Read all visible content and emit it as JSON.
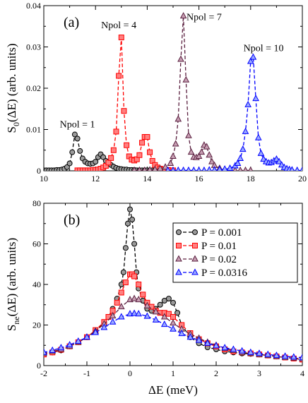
{
  "chart_data": [
    {
      "panel_label": "(a)",
      "type": "line",
      "ylabel_main": "S",
      "ylabel_sub": "0",
      "ylabel_rest": "(ΔE) (arb. units)",
      "xlim": [
        10,
        20
      ],
      "ylim": [
        0,
        0.04
      ],
      "xticks": [
        10,
        12,
        14,
        16,
        18,
        20
      ],
      "xtick_labels": [
        "10",
        "12",
        "14",
        "16",
        "18",
        "20"
      ],
      "yticks": [
        0,
        0.01,
        0.02,
        0.03,
        0.04
      ],
      "ytick_labels": [
        "0",
        "0.01",
        "0.02",
        "0.03",
        "0.04"
      ],
      "annotations": [
        {
          "text": "Npol = 1",
          "x": 11.3,
          "y": 0.0105
        },
        {
          "text": "Npol = 4",
          "x": 12.9,
          "y": 0.0345
        },
        {
          "text": "Npol = 7",
          "x": 16.2,
          "y": 0.0365
        },
        {
          "text": "Npol = 10",
          "x": 18.5,
          "y": 0.029
        }
      ],
      "series": [
        {
          "color": "#000000",
          "fill": "#9a9a9a",
          "marker": "circle",
          "x": [
            10.0,
            10.1,
            10.2,
            10.3,
            10.4,
            10.5,
            10.6,
            10.7,
            10.8,
            10.9,
            11.0,
            11.1,
            11.2,
            11.3,
            11.4,
            11.5,
            11.6,
            11.7,
            11.8,
            11.9,
            12.0,
            12.1,
            12.2,
            12.3,
            12.4,
            12.5,
            12.6,
            12.7,
            12.8,
            12.9,
            13.0,
            13.1,
            13.2,
            13.3,
            13.4,
            13.5,
            13.6,
            13.7,
            13.8,
            13.9,
            14.0,
            14.1,
            14.2,
            14.3,
            14.4,
            14.5,
            14.6,
            14.7,
            14.8,
            14.9,
            15.0
          ],
          "y": [
            0.0001,
            0.0001,
            0.0001,
            0.0001,
            0.0001,
            0.0002,
            0.0002,
            0.0003,
            0.0005,
            0.0009,
            0.0018,
            0.0045,
            0.0088,
            0.0078,
            0.0048,
            0.003,
            0.0022,
            0.0018,
            0.0017,
            0.0018,
            0.0022,
            0.0033,
            0.004,
            0.0033,
            0.0024,
            0.0018,
            0.0014,
            0.001,
            0.0007,
            0.0005,
            0.0004,
            0.0003,
            0.0003,
            0.0002,
            0.0002,
            0.0002,
            0.0001,
            0.0001,
            0.0001,
            0.0001,
            0.0001,
            0.0001,
            0.0001,
            0.0001,
            0.0001,
            0.0001,
            0.0001,
            0.0001,
            0.0001,
            0.0001,
            0.0001
          ]
        },
        {
          "color": "#ff0000",
          "fill": "#ff8080",
          "marker": "square",
          "x": [
            11.3,
            11.4,
            11.5,
            11.6,
            11.7,
            11.8,
            11.9,
            12.0,
            12.1,
            12.2,
            12.3,
            12.4,
            12.5,
            12.6,
            12.7,
            12.8,
            12.9,
            13.0,
            13.1,
            13.2,
            13.3,
            13.4,
            13.5,
            13.6,
            13.7,
            13.8,
            13.9,
            14.0,
            14.1,
            14.2,
            14.3,
            14.4,
            14.5,
            14.6,
            14.7,
            14.8,
            14.9,
            15.0
          ],
          "y": [
            0.0001,
            0.0001,
            0.0001,
            0.0001,
            0.0001,
            0.0001,
            0.0002,
            0.0002,
            0.0003,
            0.0005,
            0.0008,
            0.0012,
            0.002,
            0.0031,
            0.005,
            0.0095,
            0.023,
            0.0323,
            0.0145,
            0.0062,
            0.0035,
            0.0027,
            0.0025,
            0.0028,
            0.0038,
            0.0068,
            0.0082,
            0.0082,
            0.0045,
            0.0024,
            0.0014,
            0.0008,
            0.0005,
            0.0003,
            0.0002,
            0.0002,
            0.0001,
            0.0001
          ]
        },
        {
          "color": "#5a1f3f",
          "fill": "#c8a0b4",
          "marker": "triangle",
          "x": [
            13.5,
            13.7,
            13.9,
            14.1,
            14.3,
            14.5,
            14.7,
            14.9,
            15.0,
            15.1,
            15.2,
            15.3,
            15.4,
            15.5,
            15.6,
            15.7,
            15.8,
            15.9,
            16.0,
            16.1,
            16.2,
            16.3,
            16.4,
            16.5,
            16.6,
            16.8,
            17.0,
            17.2,
            17.4,
            17.6,
            17.8,
            18.0
          ],
          "y": [
            0.0001,
            0.0001,
            0.0001,
            0.0002,
            0.0003,
            0.0005,
            0.0009,
            0.0018,
            0.0035,
            0.0065,
            0.0125,
            0.027,
            0.0375,
            0.022,
            0.0085,
            0.0045,
            0.0033,
            0.0032,
            0.0035,
            0.0045,
            0.0062,
            0.0058,
            0.0038,
            0.0022,
            0.0013,
            0.0006,
            0.0003,
            0.0002,
            0.0001,
            0.0001,
            0.0001,
            0.0001
          ]
        },
        {
          "color": "#0000ff",
          "fill": "#9aaaff",
          "marker": "triangle",
          "x": [
            14.8,
            15.0,
            15.2,
            15.4,
            15.6,
            15.8,
            16.0,
            16.2,
            16.4,
            16.6,
            16.8,
            17.0,
            17.2,
            17.4,
            17.5,
            17.6,
            17.7,
            17.8,
            17.9,
            18.0,
            18.1,
            18.2,
            18.3,
            18.4,
            18.5,
            18.6,
            18.7,
            18.8,
            18.9,
            19.0,
            19.1,
            19.2,
            19.3,
            19.4,
            19.5,
            19.6,
            19.8,
            20.0
          ],
          "y": [
            0.0001,
            0.0001,
            0.0001,
            0.0001,
            0.0001,
            0.0001,
            0.0001,
            0.0001,
            0.0002,
            0.0002,
            0.0003,
            0.0004,
            0.0006,
            0.0012,
            0.0018,
            0.003,
            0.0052,
            0.0095,
            0.016,
            0.0265,
            0.0275,
            0.0175,
            0.008,
            0.0042,
            0.0028,
            0.0022,
            0.0019,
            0.002,
            0.0024,
            0.0028,
            0.0022,
            0.0014,
            0.0008,
            0.0005,
            0.0003,
            0.0002,
            0.0001,
            0.0001
          ]
        }
      ]
    },
    {
      "panel_label": "(b)",
      "type": "line",
      "ylabel_main": "S",
      "ylabel_sub": "ne",
      "ylabel_rest": "(ΔE) (arb. units)",
      "xlabel": "ΔE (meV)",
      "xlim": [
        -2,
        4
      ],
      "ylim": [
        0,
        80
      ],
      "xticks": [
        -2,
        -1,
        0,
        1,
        2,
        3,
        4
      ],
      "xtick_labels": [
        "-2",
        "-1",
        "0",
        "1",
        "2",
        "3",
        "4"
      ],
      "yticks": [
        0,
        20,
        40,
        60,
        80
      ],
      "ytick_labels": [
        "0",
        "20",
        "40",
        "60",
        "80"
      ],
      "legend_position": "top-right",
      "series": [
        {
          "name": "P = 0.001",
          "color": "#000000",
          "fill": "#9a9a9a",
          "marker": "circle",
          "x": [
            -2.0,
            -1.8,
            -1.6,
            -1.4,
            -1.2,
            -1.0,
            -0.8,
            -0.6,
            -0.5,
            -0.4,
            -0.3,
            -0.2,
            -0.15,
            -0.1,
            -0.05,
            0.0,
            0.05,
            0.1,
            0.15,
            0.2,
            0.3,
            0.4,
            0.5,
            0.6,
            0.7,
            0.8,
            0.9,
            1.0,
            1.1,
            1.2,
            1.4,
            1.6,
            1.8,
            2.0,
            2.2,
            2.4,
            2.6,
            2.8,
            3.0,
            3.2,
            3.4,
            3.6,
            3.8,
            4.0
          ],
          "y": [
            5.5,
            6.5,
            7.5,
            9.5,
            11.5,
            14,
            17,
            21,
            24,
            28,
            33,
            40,
            46,
            58,
            70,
            77,
            72,
            60,
            46,
            38,
            32,
            28,
            27,
            28,
            30,
            32,
            33,
            31,
            26,
            20,
            14,
            11,
            9,
            8,
            7,
            6.5,
            6,
            5.8,
            5.5,
            5,
            4.5,
            4,
            3.5,
            3
          ]
        },
        {
          "name": "P = 0.01",
          "color": "#ff0000",
          "fill": "#ff8080",
          "marker": "square",
          "x": [
            -2.0,
            -1.8,
            -1.6,
            -1.4,
            -1.2,
            -1.0,
            -0.8,
            -0.6,
            -0.5,
            -0.4,
            -0.3,
            -0.2,
            -0.1,
            0.0,
            0.05,
            0.1,
            0.2,
            0.3,
            0.4,
            0.5,
            0.6,
            0.7,
            0.8,
            0.9,
            1.0,
            1.2,
            1.4,
            1.6,
            1.8,
            2.0,
            2.2,
            2.4,
            2.6,
            2.8,
            3.0,
            3.2,
            3.4,
            3.6,
            3.8,
            4.0
          ],
          "y": [
            5.5,
            6.5,
            7.8,
            9.5,
            11.5,
            14,
            17.5,
            21.5,
            24,
            27,
            31,
            36,
            41,
            45,
            45,
            44,
            40,
            35,
            31,
            29,
            27,
            26,
            26,
            25.5,
            24,
            20,
            16,
            13,
            11,
            9.5,
            8,
            7,
            6.5,
            6,
            5.5,
            5,
            4.5,
            4,
            3.5,
            3
          ]
        },
        {
          "name": "P = 0.02",
          "color": "#5a1f3f",
          "fill": "#c8a0b4",
          "marker": "triangle",
          "x": [
            -2.0,
            -1.8,
            -1.6,
            -1.4,
            -1.2,
            -1.0,
            -0.8,
            -0.6,
            -0.4,
            -0.2,
            0.0,
            0.1,
            0.2,
            0.4,
            0.6,
            0.8,
            1.0,
            1.2,
            1.4,
            1.6,
            1.8,
            2.0,
            2.2,
            2.4,
            2.6,
            2.8,
            3.0,
            3.2,
            3.4,
            3.6,
            3.8,
            4.0
          ],
          "y": [
            6,
            7,
            8,
            9.5,
            11.5,
            14,
            17,
            20.5,
            24.5,
            29,
            32.5,
            33,
            32.5,
            29.5,
            26.5,
            24,
            21,
            18,
            15.5,
            13.5,
            11.5,
            10,
            8.5,
            7.5,
            6.5,
            6,
            5.5,
            5,
            4.5,
            4,
            3.7,
            3.4
          ]
        },
        {
          "name": "P = 0.0316",
          "color": "#0000ff",
          "fill": "#9aaaff",
          "marker": "triangle",
          "x": [
            -2.0,
            -1.8,
            -1.6,
            -1.4,
            -1.2,
            -1.0,
            -0.8,
            -0.6,
            -0.4,
            -0.2,
            0.0,
            0.1,
            0.2,
            0.4,
            0.6,
            0.8,
            1.0,
            1.2,
            1.4,
            1.6,
            1.8,
            2.0,
            2.2,
            2.4,
            2.6,
            2.8,
            3.0,
            3.2,
            3.4,
            3.6,
            3.8,
            4.0
          ],
          "y": [
            6.5,
            7.5,
            8.8,
            10.2,
            12,
            14,
            16.3,
            18.8,
            21.5,
            24,
            25.5,
            25.7,
            25.5,
            24.3,
            22.5,
            20.3,
            18,
            15.8,
            14,
            12.5,
            11,
            9.8,
            8.8,
            8,
            7.2,
            6.5,
            6,
            5.5,
            5,
            4.6,
            4.2,
            3.9
          ]
        }
      ]
    }
  ]
}
